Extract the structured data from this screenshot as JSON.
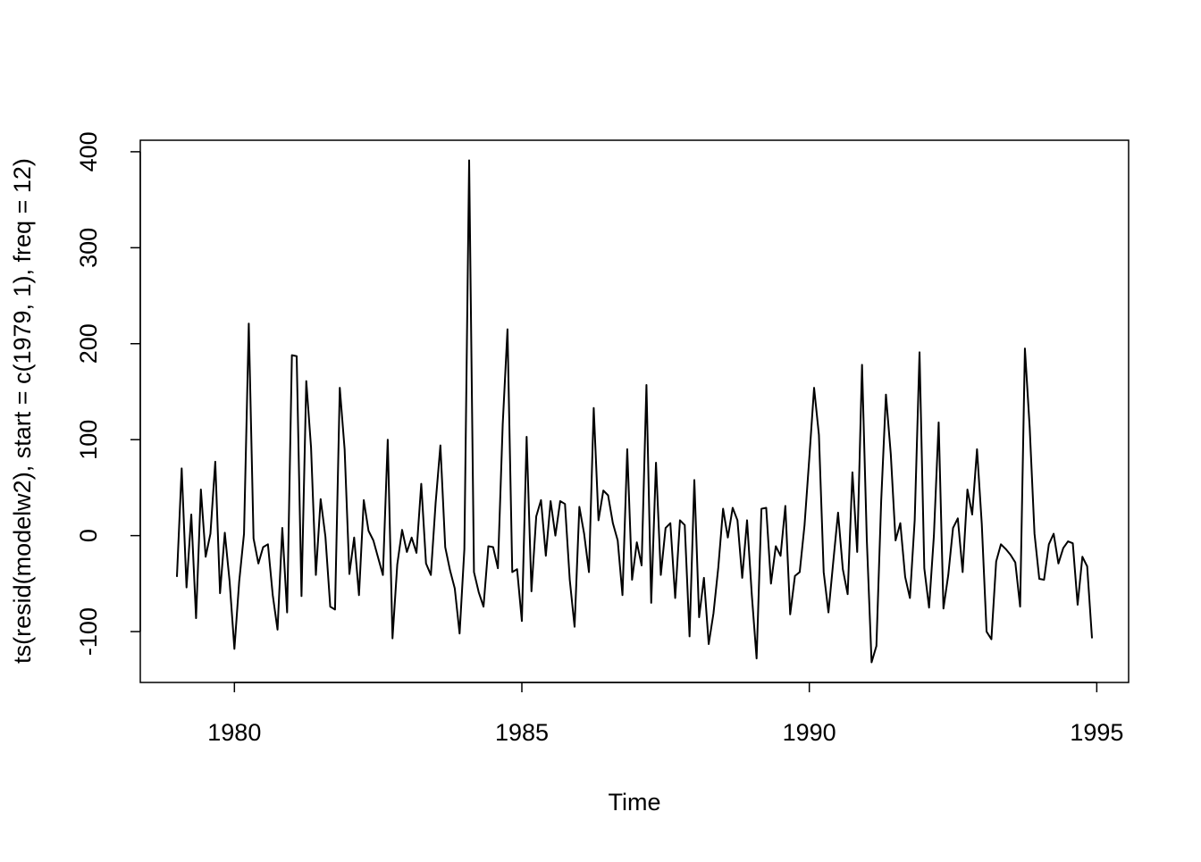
{
  "chart_data": {
    "type": "line",
    "x_label": "Time",
    "y_label": "ts(resid(modelw2), start = c(1979, 1), freq = 12)",
    "xlim": [
      1978.363,
      1995.554
    ],
    "ylim": [
      -153,
      412
    ],
    "xticks": [
      1980,
      1985,
      1990,
      1995
    ],
    "yticks": [
      -100,
      0,
      100,
      200,
      300,
      400
    ],
    "grid": false,
    "x": [
      1979,
      1979.083,
      1979.167,
      1979.25,
      1979.333,
      1979.417,
      1979.5,
      1979.583,
      1979.667,
      1979.75,
      1979.833,
      1979.917,
      1980,
      1980.083,
      1980.167,
      1980.25,
      1980.333,
      1980.417,
      1980.5,
      1980.583,
      1980.667,
      1980.75,
      1980.833,
      1980.917,
      1981,
      1981.083,
      1981.167,
      1981.25,
      1981.333,
      1981.417,
      1981.5,
      1981.583,
      1981.667,
      1981.75,
      1981.833,
      1981.917,
      1982,
      1982.083,
      1982.167,
      1982.25,
      1982.333,
      1982.417,
      1982.5,
      1982.583,
      1982.667,
      1982.75,
      1982.833,
      1982.917,
      1983,
      1983.083,
      1983.167,
      1983.25,
      1983.333,
      1983.417,
      1983.5,
      1983.583,
      1983.667,
      1983.75,
      1983.833,
      1983.917,
      1984,
      1984.083,
      1984.167,
      1984.25,
      1984.333,
      1984.417,
      1984.5,
      1984.583,
      1984.667,
      1984.75,
      1984.833,
      1984.917,
      1985,
      1985.083,
      1985.167,
      1985.25,
      1985.333,
      1985.417,
      1985.5,
      1985.583,
      1985.667,
      1985.75,
      1985.833,
      1985.917,
      1986,
      1986.083,
      1986.167,
      1986.25,
      1986.333,
      1986.417,
      1986.5,
      1986.583,
      1986.667,
      1986.75,
      1986.833,
      1986.917,
      1987,
      1987.083,
      1987.167,
      1987.25,
      1987.333,
      1987.417,
      1987.5,
      1987.583,
      1987.667,
      1987.75,
      1987.833,
      1987.917,
      1988,
      1988.083,
      1988.167,
      1988.25,
      1988.333,
      1988.417,
      1988.5,
      1988.583,
      1988.667,
      1988.75,
      1988.833,
      1988.917,
      1989,
      1989.083,
      1989.167,
      1989.25,
      1989.333,
      1989.417,
      1989.5,
      1989.583,
      1989.667,
      1989.75,
      1989.833,
      1989.917,
      1990,
      1990.083,
      1990.167,
      1990.25,
      1990.333,
      1990.417,
      1990.5,
      1990.583,
      1990.667,
      1990.75,
      1990.833,
      1990.917,
      1991,
      1991.083,
      1991.167,
      1991.25,
      1991.333,
      1991.417,
      1991.5,
      1991.583,
      1991.667,
      1991.75,
      1991.833,
      1991.917,
      1992,
      1992.083,
      1992.167,
      1992.25,
      1992.333,
      1992.417,
      1992.5,
      1992.583,
      1992.667,
      1992.75,
      1992.833,
      1992.917,
      1993,
      1993.083,
      1993.167,
      1993.25,
      1993.333,
      1993.417,
      1993.5,
      1993.583,
      1993.667,
      1993.75,
      1993.833,
      1993.917,
      1994,
      1994.083,
      1994.167,
      1994.25,
      1994.333,
      1994.417,
      1994.5,
      1994.583,
      1994.667,
      1994.75,
      1994.833,
      1994.917
    ],
    "series": [
      {
        "color": "#000000",
        "values": [
          -43,
          70,
          -54,
          22,
          -86,
          48,
          -22,
          2,
          77,
          -60,
          3,
          -48,
          -118,
          -48,
          2,
          221,
          -3,
          -29,
          -12,
          -9,
          -62,
          -98,
          8,
          -80,
          188,
          187,
          -63,
          161,
          92,
          -41,
          38,
          -1,
          -74,
          -77,
          154,
          90,
          -40,
          -2,
          -62,
          37,
          5,
          -5,
          -23,
          -41,
          100,
          -107,
          -30,
          6,
          -17,
          -2,
          -18,
          54,
          -29,
          -41,
          34,
          94,
          -12,
          -36,
          -55,
          -102,
          -14,
          391,
          -38,
          -59,
          -74,
          -11,
          -12,
          -34,
          116,
          215,
          -38,
          -35,
          -89,
          103,
          -58,
          20,
          37,
          -21,
          36,
          0,
          36,
          33,
          -46,
          -95,
          30,
          2,
          -38,
          133,
          16,
          47,
          42,
          13,
          -5,
          -62,
          90,
          -46,
          -7,
          -31,
          157,
          -70,
          76,
          -41,
          8,
          13,
          -65,
          16,
          11,
          -105,
          58,
          -85,
          -44,
          -113,
          -81,
          -33,
          28,
          -2,
          29,
          16,
          -44,
          16,
          -62,
          -128,
          28,
          29,
          -50,
          -11,
          -21,
          31,
          -82,
          -42,
          -38,
          11,
          81,
          154,
          105,
          -38,
          -80,
          -27,
          24,
          -35,
          -61,
          66,
          -17,
          178,
          -4,
          -132,
          -115,
          36,
          147,
          85,
          -5,
          13,
          -43,
          -65,
          16,
          191,
          -34,
          -75,
          0,
          118,
          -76,
          -41,
          8,
          18,
          -38,
          48,
          22,
          90,
          12,
          -100,
          -108,
          -27,
          -9,
          -14,
          -20,
          -28,
          -74,
          195,
          113,
          2,
          -45,
          -46,
          -9,
          2,
          -29,
          -13,
          -6,
          -8,
          -72,
          -22,
          -32,
          -107
        ]
      }
    ]
  }
}
